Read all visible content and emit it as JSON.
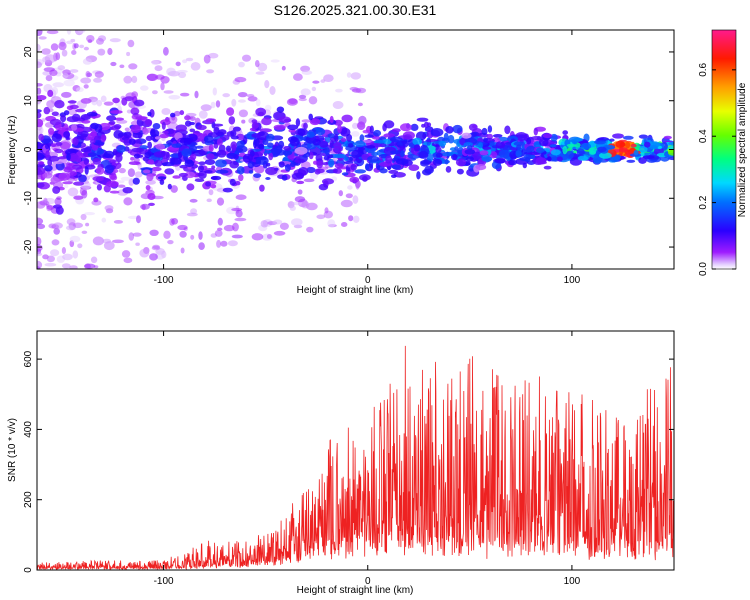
{
  "title": "S126.2025.321.00.30.E31",
  "chart_data": [
    {
      "type": "heatmap",
      "xlabel": "Height of straight line (km)",
      "ylabel": "Frequency (Hz)",
      "xlim": [
        -162,
        150
      ],
      "ylim": [
        -24.5,
        24.5
      ],
      "xticks": [
        -100,
        0,
        100
      ],
      "yticks": [
        -20,
        -10,
        0,
        10,
        20
      ],
      "colorbar": {
        "label": "Normalized spectral amplitude",
        "range": [
          0,
          0.72
        ],
        "ticks": [
          "0.0",
          "0.2",
          "0.4",
          "0.6"
        ],
        "tick_values": [
          0,
          0.2,
          0.4,
          0.6
        ]
      },
      "description_values": {
        "band_center_hz": 0,
        "band_halfwidth_hz_at_left": 24,
        "band_halfwidth_hz_at_right": 3,
        "peak_amplitude": 0.7,
        "peak_x_km": 125
      }
    },
    {
      "type": "line",
      "color": "#ee2222",
      "xlabel": "Height of straight line (km)",
      "ylabel": "SNR (10 * v/v)",
      "xlim": [
        -162,
        150
      ],
      "ylim": [
        0,
        680
      ],
      "xticks": [
        -100,
        0,
        100
      ],
      "yticks": [
        0,
        200,
        400,
        600
      ],
      "envelope": {
        "x": [
          -162,
          -140,
          -120,
          -100,
          -90,
          -80,
          -70,
          -60,
          -50,
          -40,
          -30,
          -20,
          -10,
          0,
          10,
          20,
          30,
          40,
          50,
          60,
          70,
          80,
          90,
          100,
          110,
          120,
          130,
          140,
          150
        ],
        "baseline": [
          5,
          5,
          5,
          6,
          8,
          10,
          15,
          20,
          28,
          40,
          55,
          70,
          85,
          95,
          100,
          105,
          105,
          100,
          100,
          95,
          90,
          90,
          85,
          85,
          85,
          80,
          80,
          80,
          80
        ],
        "peak": [
          25,
          28,
          30,
          32,
          50,
          90,
          80,
          90,
          120,
          180,
          250,
          380,
          450,
          480,
          560,
          670,
          640,
          610,
          660,
          620,
          560,
          580,
          560,
          560,
          600,
          520,
          500,
          630,
          600
        ]
      }
    }
  ]
}
